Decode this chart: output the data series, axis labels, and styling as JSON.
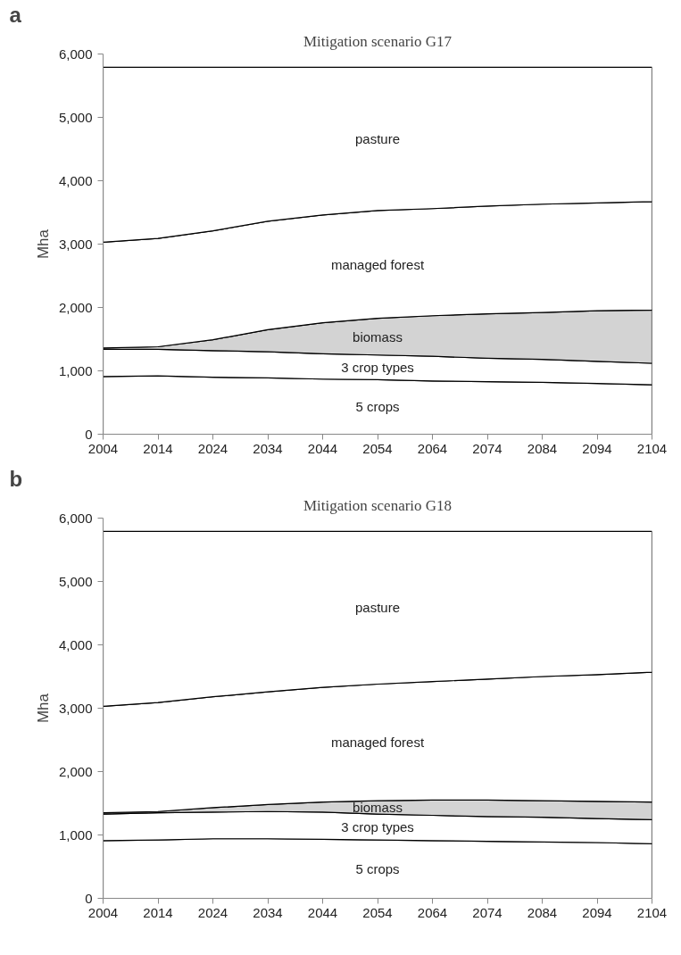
{
  "chart_data": [
    {
      "type": "area",
      "title": "Mitigation scenario G17",
      "ylabel": "Mha",
      "annotations": [
        "a"
      ],
      "stacked": true,
      "x": [
        2004,
        2014,
        2024,
        2034,
        2044,
        2054,
        2064,
        2074,
        2084,
        2094,
        2104
      ],
      "xlim": [
        2004,
        2104
      ],
      "ylim": [
        0,
        6000
      ],
      "xticks": [
        2004,
        2014,
        2024,
        2034,
        2044,
        2054,
        2064,
        2074,
        2084,
        2094,
        2104
      ],
      "yticks": [
        0,
        {
          "value": 1000,
          "label": "1,000"
        },
        {
          "value": 2000,
          "label": "2,000"
        },
        {
          "value": 3000,
          "label": "3,000"
        },
        {
          "value": 4000,
          "label": "4,000"
        },
        {
          "value": 5000,
          "label": "5,000"
        },
        {
          "value": 6000,
          "label": "6,000"
        }
      ],
      "series": [
        {
          "name": "5 crops",
          "color": "#ffffff",
          "values": [
            910,
            920,
            900,
            890,
            870,
            860,
            840,
            830,
            820,
            800,
            780
          ]
        },
        {
          "name": "3 crop types",
          "color": "#ffffff",
          "values": [
            430,
            420,
            420,
            410,
            400,
            390,
            390,
            370,
            360,
            350,
            340
          ]
        },
        {
          "name": "biomass",
          "color": "#d3d3d3",
          "values": [
            20,
            40,
            170,
            350,
            490,
            580,
            640,
            700,
            740,
            800,
            840
          ]
        },
        {
          "name": "managed forest",
          "color": "#ffffff",
          "values": [
            1670,
            1710,
            1720,
            1710,
            1700,
            1700,
            1690,
            1700,
            1710,
            1700,
            1710
          ]
        },
        {
          "name": "pasture",
          "color": "#ffffff",
          "values": [
            2760,
            2700,
            2580,
            2430,
            2330,
            2260,
            2230,
            2190,
            2160,
            2140,
            2120
          ]
        }
      ]
    },
    {
      "type": "area",
      "title": "Mitigation scenario G18",
      "ylabel": "Mha",
      "annotations": [
        "b"
      ],
      "stacked": true,
      "x": [
        2004,
        2014,
        2024,
        2034,
        2044,
        2054,
        2064,
        2074,
        2084,
        2094,
        2104
      ],
      "xlim": [
        2004,
        2104
      ],
      "ylim": [
        0,
        6000
      ],
      "xticks": [
        2004,
        2014,
        2024,
        2034,
        2044,
        2054,
        2064,
        2074,
        2084,
        2094,
        2104
      ],
      "yticks": [
        0,
        {
          "value": 1000,
          "label": "1,000"
        },
        {
          "value": 2000,
          "label": "2,000"
        },
        {
          "value": 3000,
          "label": "3,000"
        },
        {
          "value": 4000,
          "label": "4,000"
        },
        {
          "value": 5000,
          "label": "5,000"
        },
        {
          "value": 6000,
          "label": "6,000"
        }
      ],
      "series": [
        {
          "name": "5 crops",
          "color": "#ffffff",
          "values": [
            910,
            920,
            940,
            940,
            930,
            920,
            910,
            900,
            890,
            880,
            860
          ]
        },
        {
          "name": "3 crop types",
          "color": "#ffffff",
          "values": [
            420,
            430,
            420,
            430,
            430,
            410,
            400,
            390,
            390,
            380,
            380
          ]
        },
        {
          "name": "biomass",
          "color": "#d3d3d3",
          "values": [
            20,
            20,
            70,
            110,
            160,
            210,
            240,
            260,
            260,
            270,
            280
          ]
        },
        {
          "name": "managed forest",
          "color": "#ffffff",
          "values": [
            1680,
            1720,
            1750,
            1780,
            1810,
            1840,
            1870,
            1910,
            1960,
            2000,
            2050
          ]
        },
        {
          "name": "pasture",
          "color": "#ffffff",
          "values": [
            2760,
            2700,
            2610,
            2530,
            2460,
            2410,
            2370,
            2330,
            2290,
            2260,
            2220
          ]
        }
      ]
    }
  ]
}
